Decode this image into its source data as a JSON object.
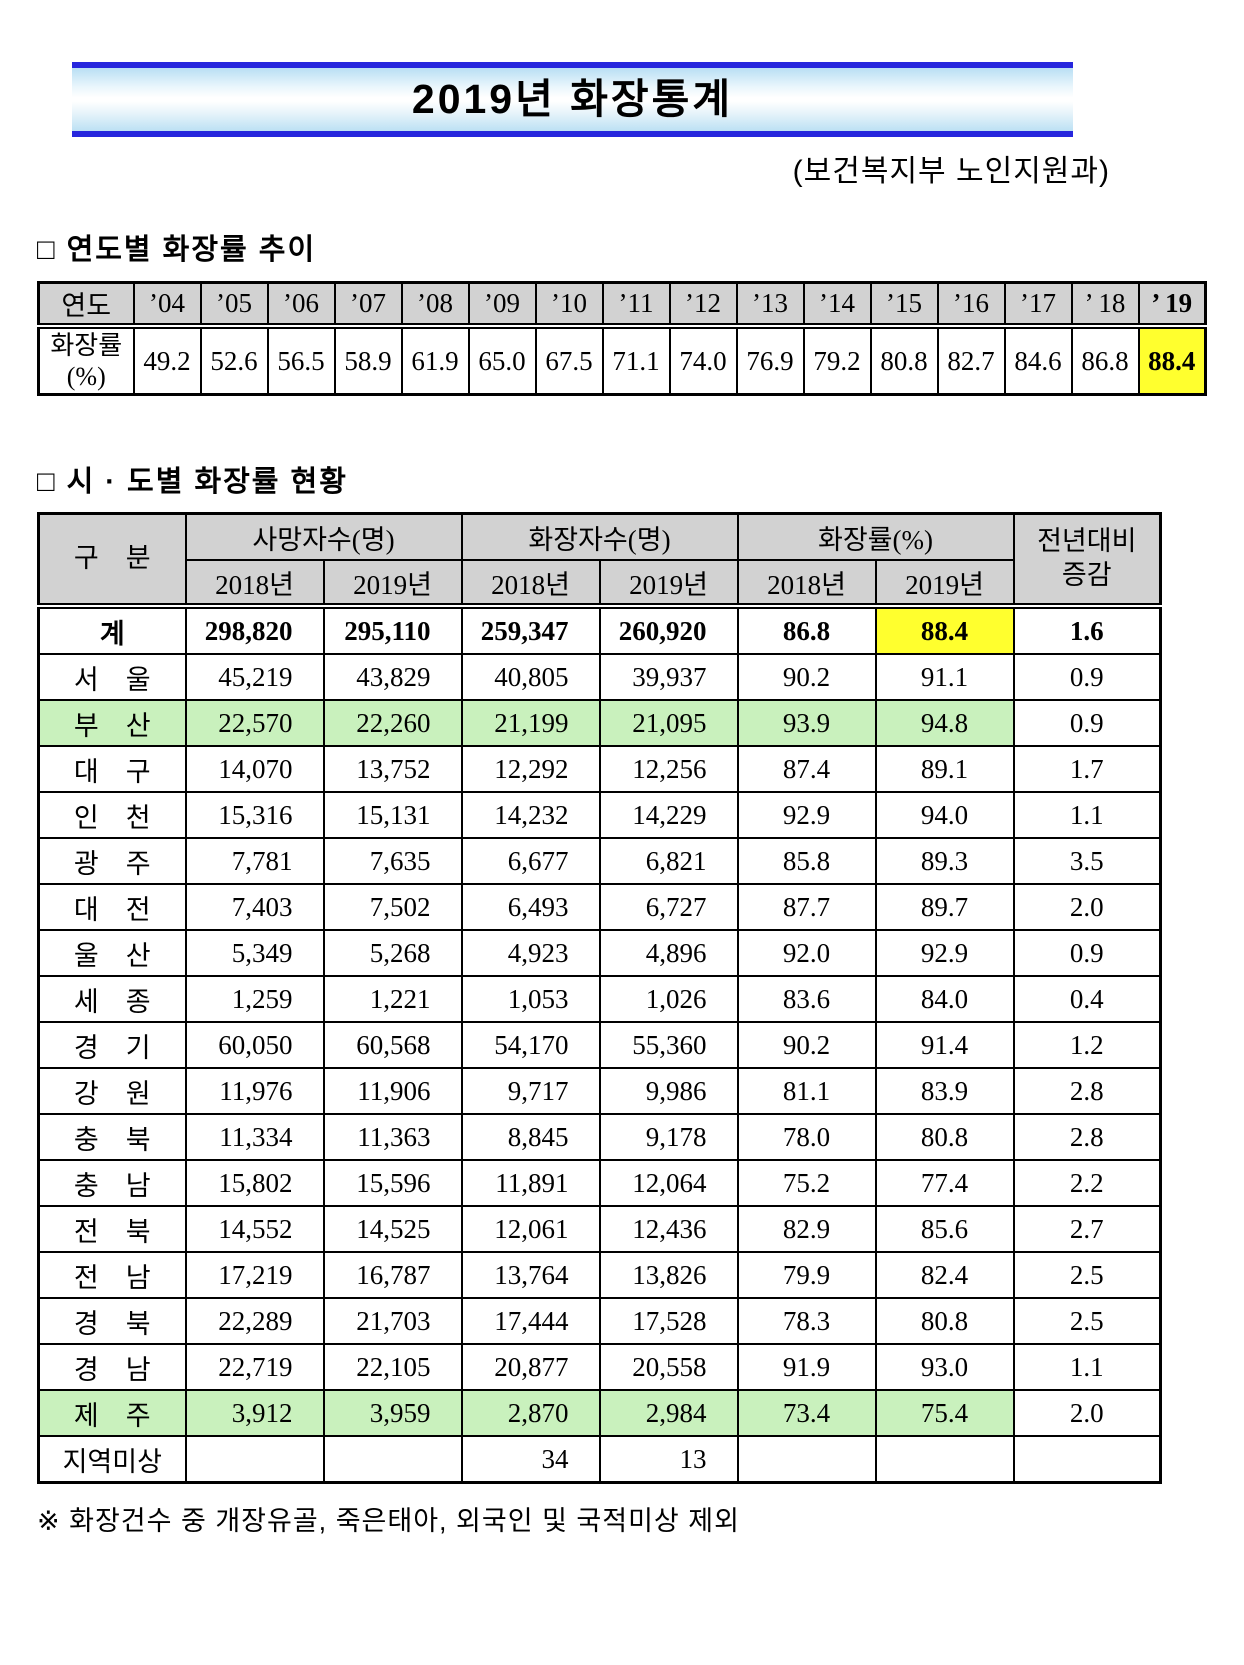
{
  "page": {
    "title": "2019년 화장통계",
    "subtitle": "(보건복지부 노인지원과)",
    "footnote": "※ 화장건수 중 개장유골, 죽은태아, 외국인 및 국적미상 제외"
  },
  "colors": {
    "banner_blue": "#2626dd",
    "banner_gradient_edge": "#b9dff4",
    "header_gray": "#d2d2d2",
    "highlight_yellow": "#ffff2e",
    "highlight_green": "#c9f1bd"
  },
  "section1": {
    "heading": "□ 연도별 화장률 추이",
    "table": {
      "row_header_top": "연도",
      "row_header_bottom": "화장률\n(%)",
      "years": [
        "’04",
        "’05",
        "’06",
        "’07",
        "’08",
        "’09",
        "’10",
        "’11",
        "’12",
        "’13",
        "’14",
        "’15",
        "’16",
        "’17",
        "’ 18",
        "’ 19"
      ],
      "rates": [
        "49.2",
        "52.6",
        "56.5",
        "58.9",
        "61.9",
        "65.0",
        "67.5",
        "71.1",
        "74.0",
        "76.9",
        "79.2",
        "80.8",
        "82.7",
        "84.6",
        "86.8",
        "88.4"
      ],
      "highlight_index": 15
    }
  },
  "section2": {
    "heading": "□ 시 · 도별 화장률 현황",
    "table": {
      "corner_header": "구　분",
      "group_headers": [
        "사망자수(명)",
        "화장자수(명)",
        "화장률(%)"
      ],
      "sub_headers": [
        "2018년",
        "2019년",
        "2018년",
        "2019년",
        "2018년",
        "2019년"
      ],
      "last_col_header": "전년대비\n증감",
      "rows": [
        {
          "region": "계",
          "values": [
            "298,820",
            "295,110",
            "259,347",
            "260,920",
            "86.8",
            "88.4",
            "1.6"
          ],
          "bold": true,
          "green": false,
          "yellow_cell": 5
        },
        {
          "region": "서　울",
          "values": [
            "45,219",
            "43,829",
            "40,805",
            "39,937",
            "90.2",
            "91.1",
            "0.9"
          ],
          "bold": false,
          "green": false,
          "yellow_cell": -1
        },
        {
          "region": "부　산",
          "values": [
            "22,570",
            "22,260",
            "21,199",
            "21,095",
            "93.9",
            "94.8",
            "0.9"
          ],
          "bold": false,
          "green": true,
          "yellow_cell": -1
        },
        {
          "region": "대　구",
          "values": [
            "14,070",
            "13,752",
            "12,292",
            "12,256",
            "87.4",
            "89.1",
            "1.7"
          ],
          "bold": false,
          "green": false,
          "yellow_cell": -1
        },
        {
          "region": "인　천",
          "values": [
            "15,316",
            "15,131",
            "14,232",
            "14,229",
            "92.9",
            "94.0",
            "1.1"
          ],
          "bold": false,
          "green": false,
          "yellow_cell": -1
        },
        {
          "region": "광　주",
          "values": [
            "7,781",
            "7,635",
            "6,677",
            "6,821",
            "85.8",
            "89.3",
            "3.5"
          ],
          "bold": false,
          "green": false,
          "yellow_cell": -1
        },
        {
          "region": "대　전",
          "values": [
            "7,403",
            "7,502",
            "6,493",
            "6,727",
            "87.7",
            "89.7",
            "2.0"
          ],
          "bold": false,
          "green": false,
          "yellow_cell": -1
        },
        {
          "region": "울　산",
          "values": [
            "5,349",
            "5,268",
            "4,923",
            "4,896",
            "92.0",
            "92.9",
            "0.9"
          ],
          "bold": false,
          "green": false,
          "yellow_cell": -1
        },
        {
          "region": "세　종",
          "values": [
            "1,259",
            "1,221",
            "1,053",
            "1,026",
            "83.6",
            "84.0",
            "0.4"
          ],
          "bold": false,
          "green": false,
          "yellow_cell": -1
        },
        {
          "region": "경　기",
          "values": [
            "60,050",
            "60,568",
            "54,170",
            "55,360",
            "90.2",
            "91.4",
            "1.2"
          ],
          "bold": false,
          "green": false,
          "yellow_cell": -1
        },
        {
          "region": "강　원",
          "values": [
            "11,976",
            "11,906",
            "9,717",
            "9,986",
            "81.1",
            "83.9",
            "2.8"
          ],
          "bold": false,
          "green": false,
          "yellow_cell": -1
        },
        {
          "region": "충　북",
          "values": [
            "11,334",
            "11,363",
            "8,845",
            "9,178",
            "78.0",
            "80.8",
            "2.8"
          ],
          "bold": false,
          "green": false,
          "yellow_cell": -1
        },
        {
          "region": "충　남",
          "values": [
            "15,802",
            "15,596",
            "11,891",
            "12,064",
            "75.2",
            "77.4",
            "2.2"
          ],
          "bold": false,
          "green": false,
          "yellow_cell": -1
        },
        {
          "region": "전　북",
          "values": [
            "14,552",
            "14,525",
            "12,061",
            "12,436",
            "82.9",
            "85.6",
            "2.7"
          ],
          "bold": false,
          "green": false,
          "yellow_cell": -1
        },
        {
          "region": "전　남",
          "values": [
            "17,219",
            "16,787",
            "13,764",
            "13,826",
            "79.9",
            "82.4",
            "2.5"
          ],
          "bold": false,
          "green": false,
          "yellow_cell": -1
        },
        {
          "region": "경　북",
          "values": [
            "22,289",
            "21,703",
            "17,444",
            "17,528",
            "78.3",
            "80.8",
            "2.5"
          ],
          "bold": false,
          "green": false,
          "yellow_cell": -1
        },
        {
          "region": "경　남",
          "values": [
            "22,719",
            "22,105",
            "20,877",
            "20,558",
            "91.9",
            "93.0",
            "1.1"
          ],
          "bold": false,
          "green": false,
          "yellow_cell": -1
        },
        {
          "region": "제　주",
          "values": [
            "3,912",
            "3,959",
            "2,870",
            "2,984",
            "73.4",
            "75.4",
            "2.0"
          ],
          "bold": false,
          "green": true,
          "yellow_cell": -1
        },
        {
          "region": "지역미상",
          "values": [
            "",
            "",
            "34",
            "13",
            "",
            "",
            ""
          ],
          "bold": false,
          "green": false,
          "yellow_cell": -1
        }
      ]
    }
  }
}
